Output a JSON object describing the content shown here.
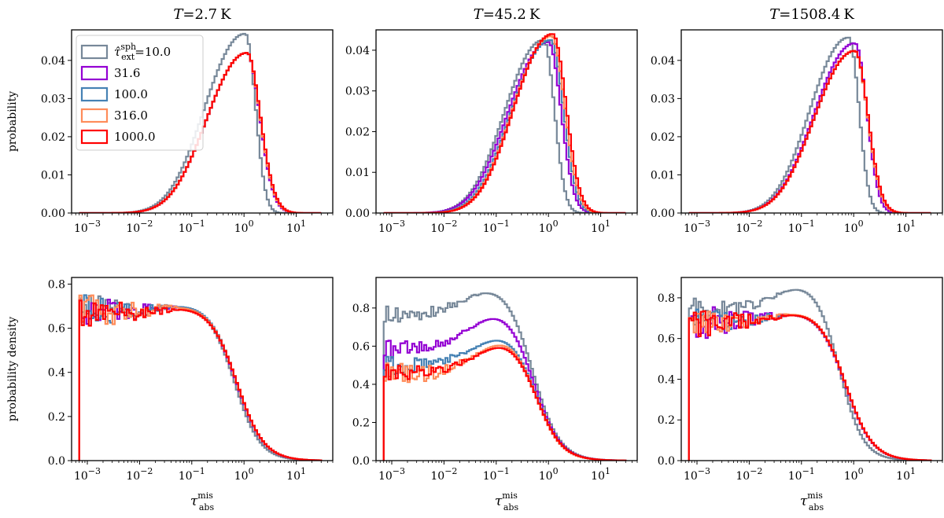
{
  "chart_data": {
    "type": "line",
    "layout": "2x3 grid of step histograms",
    "columns": [
      {
        "title_var": "T",
        "title_value": "=2.7",
        "title_unit": "K"
      },
      {
        "title_var": "T",
        "title_value": "=45.2",
        "title_unit": "K"
      },
      {
        "title_var": "T",
        "title_value": "=1508.4",
        "title_unit": "K"
      }
    ],
    "rows": [
      {
        "ylabel": "probability"
      },
      {
        "ylabel": "probability density"
      }
    ],
    "xlabel": {
      "base": "τ",
      "sup": "mis",
      "sub": "abs"
    },
    "x_scale": "log",
    "xlim": [
      0.0005,
      50
    ],
    "x_ticks": [
      {
        "base": "10",
        "exp": "−3",
        "value": 0.001
      },
      {
        "base": "10",
        "exp": "−2",
        "value": 0.01
      },
      {
        "base": "10",
        "exp": "−1",
        "value": 0.1
      },
      {
        "base": "10",
        "exp": "0",
        "value": 1
      },
      {
        "base": "10",
        "exp": "1",
        "value": 10
      }
    ],
    "legend": {
      "placement": "upper-left of first panel",
      "first_prefix": {
        "base": "τ̂",
        "sup": "sph",
        "sub": "ext",
        "eq": "="
      },
      "entries": [
        "10.0",
        "31.6",
        "100.0",
        "316.0",
        "1000.0"
      ]
    },
    "series_colors": [
      "#778899",
      "#9400d3",
      "#4682b4",
      "#ff8c5a",
      "#ff0000"
    ],
    "panels": [
      {
        "row": 0,
        "col": 0,
        "ylim": [
          0,
          0.048
        ],
        "y_ticks": [
          "0.00",
          "0.01",
          "0.02",
          "0.03",
          "0.04"
        ],
        "y_tick_values": [
          0,
          0.01,
          0.02,
          0.03,
          0.04
        ],
        "series": [
          {
            "kind": "peak",
            "peak_x": 1.05,
            "peak_y": 0.047,
            "left_width": 1.15,
            "right_width": 0.3,
            "right_power": 1.3
          },
          {
            "kind": "peak",
            "peak_x": 1.15,
            "peak_y": 0.042,
            "left_width": 1.15,
            "right_width": 0.38,
            "right_power": 1.2
          },
          {
            "kind": "peak",
            "peak_x": 1.15,
            "peak_y": 0.042,
            "left_width": 1.15,
            "right_width": 0.39,
            "right_power": 1.2
          },
          {
            "kind": "peak",
            "peak_x": 1.15,
            "peak_y": 0.042,
            "left_width": 1.15,
            "right_width": 0.39,
            "right_power": 1.2
          },
          {
            "kind": "peak",
            "peak_x": 1.15,
            "peak_y": 0.042,
            "left_width": 1.15,
            "right_width": 0.4,
            "right_power": 1.2
          }
        ]
      },
      {
        "row": 0,
        "col": 1,
        "ylim": [
          0,
          0.045
        ],
        "y_ticks": [
          "0.00",
          "0.01",
          "0.02",
          "0.03",
          "0.04"
        ],
        "y_tick_values": [
          0,
          0.01,
          0.02,
          0.03,
          0.04
        ],
        "series": [
          {
            "kind": "peak",
            "peak_x": 0.8,
            "peak_y": 0.0425,
            "left_width": 1.1,
            "right_width": 0.32,
            "right_power": 1.3
          },
          {
            "kind": "peak",
            "peak_x": 1.0,
            "peak_y": 0.042,
            "left_width": 1.15,
            "right_width": 0.37,
            "right_power": 1.25
          },
          {
            "kind": "peak",
            "peak_x": 1.1,
            "peak_y": 0.0425,
            "left_width": 1.12,
            "right_width": 0.38,
            "right_power": 1.25
          },
          {
            "kind": "peak",
            "peak_x": 1.15,
            "peak_y": 0.0435,
            "left_width": 1.1,
            "right_width": 0.39,
            "right_power": 1.25
          },
          {
            "kind": "peak",
            "peak_x": 1.2,
            "peak_y": 0.044,
            "left_width": 1.1,
            "right_width": 0.4,
            "right_power": 1.25
          }
        ]
      },
      {
        "row": 0,
        "col": 2,
        "ylim": [
          0,
          0.048
        ],
        "y_ticks": [
          "0.00",
          "0.01",
          "0.02",
          "0.03",
          "0.04"
        ],
        "y_tick_values": [
          0,
          0.01,
          0.02,
          0.03,
          0.04
        ],
        "series": [
          {
            "kind": "peak",
            "peak_x": 0.8,
            "peak_y": 0.046,
            "left_width": 1.1,
            "right_width": 0.3,
            "right_power": 1.3
          },
          {
            "kind": "peak",
            "peak_x": 1.05,
            "peak_y": 0.0445,
            "left_width": 1.15,
            "right_width": 0.35,
            "right_power": 1.3
          },
          {
            "kind": "peak",
            "peak_x": 1.05,
            "peak_y": 0.0425,
            "left_width": 1.15,
            "right_width": 0.38,
            "right_power": 1.25
          },
          {
            "kind": "peak",
            "peak_x": 1.05,
            "peak_y": 0.0425,
            "left_width": 1.15,
            "right_width": 0.38,
            "right_power": 1.25
          },
          {
            "kind": "peak",
            "peak_x": 1.05,
            "peak_y": 0.0425,
            "left_width": 1.15,
            "right_width": 0.39,
            "right_power": 1.25
          }
        ]
      },
      {
        "row": 1,
        "col": 0,
        "ylim": [
          0,
          0.83
        ],
        "y_ticks": [
          "0.0",
          "0.2",
          "0.4",
          "0.6",
          "0.8"
        ],
        "y_tick_values": [
          0,
          0.2,
          0.4,
          0.6,
          0.8
        ],
        "series": [
          {
            "kind": "plateau",
            "start": 0.7,
            "end": 0.62,
            "bump": 0.06,
            "bump_x": 0.13,
            "knee": 0.72,
            "power": 1.8,
            "noise": 0.06
          },
          {
            "kind": "plateau",
            "start": 0.68,
            "end": 0.66,
            "bump": 0.04,
            "bump_x": 0.12,
            "knee": 0.75,
            "power": 1.7,
            "noise": 0.07
          },
          {
            "kind": "plateau",
            "start": 0.67,
            "end": 0.67,
            "bump": 0.04,
            "bump_x": 0.12,
            "knee": 0.75,
            "power": 1.7,
            "noise": 0.08
          },
          {
            "kind": "plateau",
            "start": 0.68,
            "end": 0.67,
            "bump": 0.03,
            "bump_x": 0.12,
            "knee": 0.76,
            "power": 1.7,
            "noise": 0.09
          },
          {
            "kind": "plateau",
            "start": 0.66,
            "end": 0.67,
            "bump": 0.03,
            "bump_x": 0.12,
            "knee": 0.76,
            "power": 1.7,
            "noise": 0.08
          }
        ]
      },
      {
        "row": 1,
        "col": 1,
        "ylim": [
          0,
          0.96
        ],
        "y_ticks": [
          "0.0",
          "0.2",
          "0.4",
          "0.6",
          "0.8"
        ],
        "y_tick_values": [
          0,
          0.2,
          0.4,
          0.6,
          0.8
        ],
        "series": [
          {
            "kind": "plateau",
            "start": 0.76,
            "end": 0.78,
            "bump": 0.14,
            "bump_x": 0.12,
            "knee": 0.55,
            "power": 1.7,
            "noise": 0.05
          },
          {
            "kind": "plateau",
            "start": 0.58,
            "end": 0.6,
            "bump": 0.19,
            "bump_x": 0.15,
            "knee": 0.6,
            "power": 1.7,
            "noise": 0.05
          },
          {
            "kind": "plateau",
            "start": 0.5,
            "end": 0.52,
            "bump": 0.16,
            "bump_x": 0.2,
            "knee": 0.63,
            "power": 1.7,
            "noise": 0.05
          },
          {
            "kind": "plateau",
            "start": 0.45,
            "end": 0.47,
            "bump": 0.19,
            "bump_x": 0.22,
            "knee": 0.64,
            "power": 1.7,
            "noise": 0.07
          },
          {
            "kind": "plateau",
            "start": 0.46,
            "end": 0.47,
            "bump": 0.17,
            "bump_x": 0.22,
            "knee": 0.66,
            "power": 1.7,
            "noise": 0.05
          }
        ]
      },
      {
        "row": 1,
        "col": 2,
        "ylim": [
          0,
          0.9
        ],
        "y_ticks": [
          "0.0",
          "0.2",
          "0.4",
          "0.6",
          "0.8"
        ],
        "y_tick_values": [
          0,
          0.2,
          0.4,
          0.6,
          0.8
        ],
        "series": [
          {
            "kind": "plateau",
            "start": 0.74,
            "end": 0.74,
            "bump": 0.13,
            "bump_x": 0.15,
            "knee": 0.58,
            "power": 1.9,
            "noise": 0.06
          },
          {
            "kind": "plateau",
            "start": 0.68,
            "end": 0.7,
            "bump": 0.04,
            "bump_x": 0.15,
            "knee": 0.72,
            "power": 1.7,
            "noise": 0.09
          },
          {
            "kind": "plateau",
            "start": 0.68,
            "end": 0.7,
            "bump": 0.04,
            "bump_x": 0.15,
            "knee": 0.73,
            "power": 1.7,
            "noise": 0.07
          },
          {
            "kind": "plateau",
            "start": 0.68,
            "end": 0.69,
            "bump": 0.05,
            "bump_x": 0.15,
            "knee": 0.74,
            "power": 1.7,
            "noise": 0.07
          },
          {
            "kind": "plateau",
            "start": 0.67,
            "end": 0.69,
            "bump": 0.05,
            "bump_x": 0.15,
            "knee": 0.74,
            "power": 1.7,
            "noise": 0.08
          }
        ]
      }
    ]
  }
}
